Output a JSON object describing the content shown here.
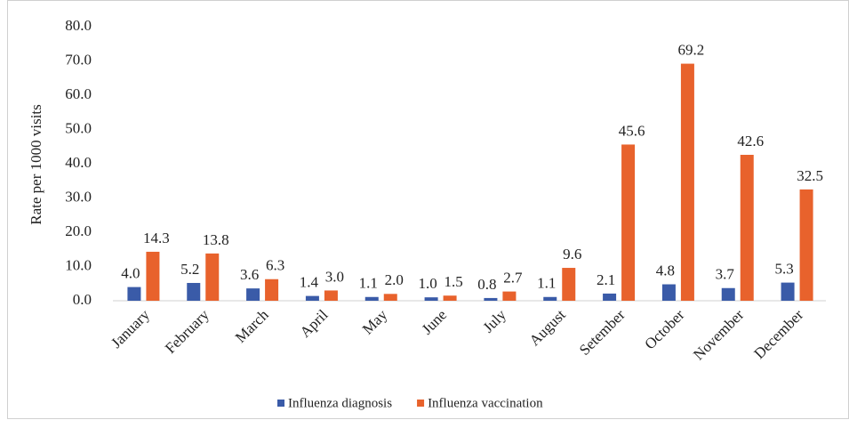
{
  "chart_data": {
    "type": "bar",
    "y_label": "Rate per 1000 visits",
    "categories": [
      "January",
      "February",
      "March",
      "April",
      "May",
      "June",
      "July",
      "August",
      "Setember",
      "October",
      "November",
      "December"
    ],
    "series": [
      {
        "name": "Influenza diagnosis",
        "color": "#3a5ba8",
        "values": [
          4.0,
          5.2,
          3.6,
          1.4,
          1.1,
          1.0,
          0.8,
          1.1,
          2.1,
          4.8,
          3.7,
          5.3
        ],
        "value_labels": [
          "4.0",
          "5.2",
          "3.6",
          "1.4",
          "1.1",
          "1.0",
          "0.8",
          "1.1",
          "2.1",
          "4.8",
          "3.7",
          "5.3"
        ]
      },
      {
        "name": "Influenza vaccination",
        "color": "#e8622c",
        "values": [
          14.3,
          13.8,
          6.3,
          3.0,
          2.0,
          1.5,
          2.7,
          9.6,
          45.6,
          69.2,
          42.6,
          32.5
        ],
        "value_labels": [
          "14.3",
          "13.8",
          "6.3",
          "3.0",
          "2.0",
          "1.5",
          "2.7",
          "9.6",
          "45.6",
          "69.2",
          "42.6",
          "32.5"
        ]
      }
    ],
    "ylim": [
      0,
      80
    ],
    "yticks": [
      {
        "value": 0,
        "label": "0.0"
      },
      {
        "value": 10,
        "label": "10.0"
      },
      {
        "value": 20,
        "label": "20.0"
      },
      {
        "value": 30,
        "label": "30.0"
      },
      {
        "value": 40,
        "label": "40.0"
      },
      {
        "value": 50,
        "label": "50.0"
      },
      {
        "value": 60,
        "label": "60.0"
      },
      {
        "value": 70,
        "label": "70.0"
      },
      {
        "value": 80,
        "label": "80.0"
      }
    ],
    "grid": false,
    "legend": "bottom"
  }
}
